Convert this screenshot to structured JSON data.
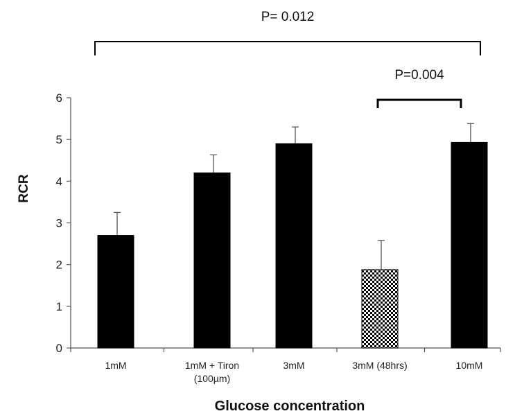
{
  "chart_data": {
    "type": "bar",
    "categories": [
      "1mM",
      "1mM + Tiron (100µm)",
      "3mM",
      "3mM (48hrs)",
      "10mM"
    ],
    "category_lines": [
      [
        "1mM"
      ],
      [
        "1mM + Tiron",
        "(100µm)"
      ],
      [
        "3mM"
      ],
      [
        "3mM (48hrs)"
      ],
      [
        "10mM"
      ]
    ],
    "values": [
      2.7,
      4.2,
      4.9,
      1.88,
      4.93
    ],
    "errors": [
      0.55,
      0.43,
      0.4,
      0.7,
      0.45
    ],
    "bar_fills": [
      "solid",
      "solid",
      "solid",
      "checker",
      "solid"
    ],
    "ylabel": "RCR",
    "xlabel": "Glucose concentration",
    "ylim": [
      0,
      6
    ],
    "yticks": [
      0,
      1,
      2,
      3,
      4,
      5,
      6
    ],
    "grid": false,
    "annotations": [
      {
        "text": "P= 0.012",
        "from": 0,
        "to": 4,
        "level": "top"
      },
      {
        "text": "P=0.004",
        "from": 3,
        "to": 4,
        "level": "lower"
      }
    ],
    "colors": {
      "bar": "#000000",
      "axis": "#555555",
      "text": "#111111"
    }
  }
}
